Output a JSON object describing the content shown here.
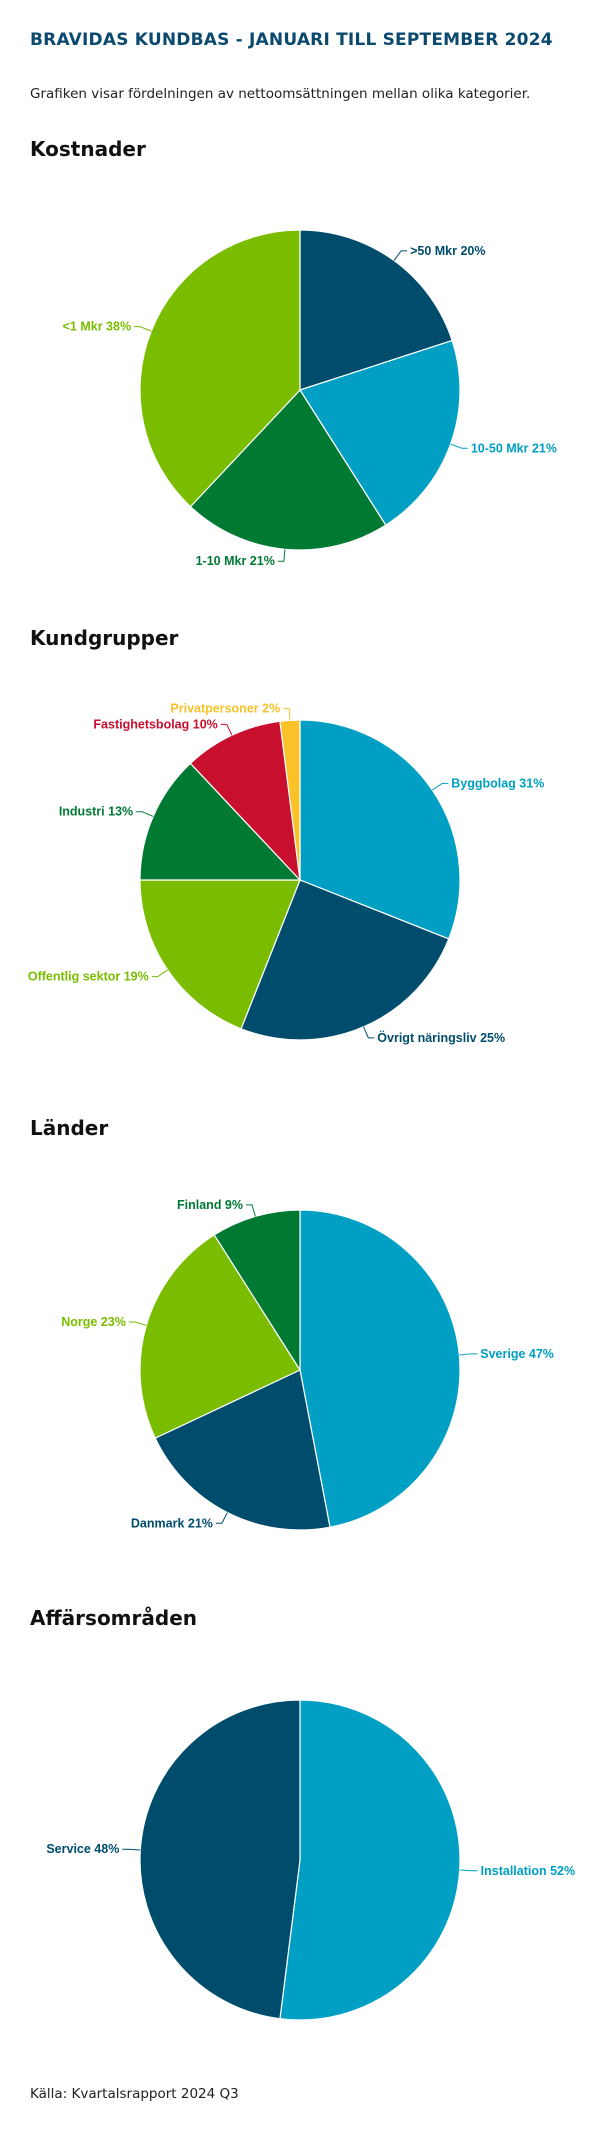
{
  "header": {
    "title": "BRAVIDAS KUNDBAS - JANUARI TILL SEPTEMBER 2024",
    "subtitle": "Grafiken visar fördelningen av nettoomsättningen mellan olika kategorier."
  },
  "colors": {
    "dark_blue": "#004c6d",
    "light_blue": "#009fc3",
    "dark_green": "#007a33",
    "lime": "#7abc00",
    "red": "#c8102e",
    "yellow": "#f9c229"
  },
  "chart_data": [
    {
      "type": "pie",
      "title": "Kostnader",
      "slices": [
        {
          "label": ">50 Mkr 20%",
          "value": 20,
          "color": "#004c6d"
        },
        {
          "label": "10-50 Mkr 21%",
          "value": 21,
          "color": "#009fc3"
        },
        {
          "label": "1-10 Mkr 21%",
          "value": 21,
          "color": "#007a33"
        },
        {
          "label": "<1 Mkr 38%",
          "value": 38,
          "color": "#7abc00"
        }
      ]
    },
    {
      "type": "pie",
      "title": "Kundgrupper",
      "slices": [
        {
          "label": "Byggbolag 31%",
          "value": 31,
          "color": "#009fc3"
        },
        {
          "label": "Övrigt näringsliv 25%",
          "value": 25,
          "color": "#004c6d"
        },
        {
          "label": "Offentlig sektor 19%",
          "value": 19,
          "color": "#7abc00"
        },
        {
          "label": "Industri 13%",
          "value": 13,
          "color": "#007a33"
        },
        {
          "label": "Fastighetsbolag 10%",
          "value": 10,
          "color": "#c8102e"
        },
        {
          "label": "Privatpersoner 2%",
          "value": 2,
          "color": "#f9c229"
        }
      ]
    },
    {
      "type": "pie",
      "title": "Länder",
      "slices": [
        {
          "label": "Sverige 47%",
          "value": 47,
          "color": "#009fc3"
        },
        {
          "label": "Danmark 21%",
          "value": 21,
          "color": "#004c6d"
        },
        {
          "label": "Norge 23%",
          "value": 23,
          "color": "#7abc00"
        },
        {
          "label": "Finland 9%",
          "value": 9,
          "color": "#007a33"
        }
      ]
    },
    {
      "type": "pie",
      "title": "Affärsområden",
      "slices": [
        {
          "label": "Installation 52%",
          "value": 52,
          "color": "#009fc3"
        },
        {
          "label": "Service 48%",
          "value": 48,
          "color": "#004c6d"
        }
      ]
    }
  ],
  "footer": {
    "source": "Källa: Kvartalsrapport 2024 Q3"
  }
}
